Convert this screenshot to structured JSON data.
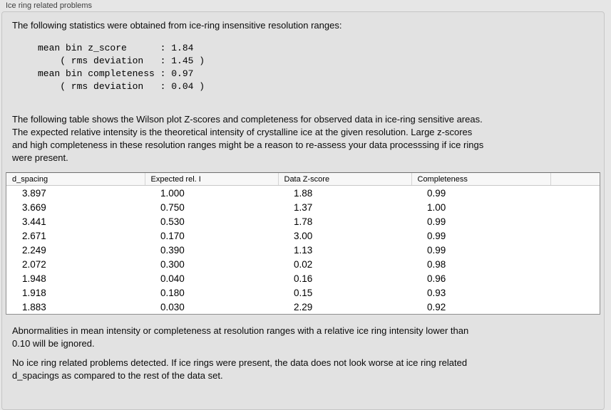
{
  "panel": {
    "title": "Ice ring related problems"
  },
  "intro": "The following statistics were obtained from ice-ring insensitive resolution ranges:",
  "stats_text": "mean bin z_score      : 1.84\n    ( rms deviation   : 1.45 )\nmean bin completeness : 0.97\n    ( rms deviation   : 0.04 )",
  "stats": {
    "mean_bin_z_score": "1.84",
    "z_score_rms_deviation": "1.45",
    "mean_bin_completeness": "0.97",
    "completeness_rms_deviation": "0.04"
  },
  "description": "The following table shows the Wilson plot Z-scores and completeness for observed data in ice-ring sensitive areas.\nThe expected relative intensity is the theoretical intensity of crystalline ice at the given resolution. Large z-scores\nand high completeness in these resolution ranges might be a reason to re-assess your data processsing if ice rings\nwere present.",
  "table": {
    "headers": [
      "d_spacing",
      "Expected rel. I",
      "Data Z-score",
      "Completeness",
      ""
    ],
    "rows": [
      [
        "3.897",
        "1.000",
        "1.88",
        "0.99"
      ],
      [
        "3.669",
        "0.750",
        "1.37",
        "1.00"
      ],
      [
        "3.441",
        "0.530",
        "1.78",
        "0.99"
      ],
      [
        "2.671",
        "0.170",
        "3.00",
        "0.99"
      ],
      [
        "2.249",
        "0.390",
        "1.13",
        "0.99"
      ],
      [
        "2.072",
        "0.300",
        "0.02",
        "0.98"
      ],
      [
        "1.948",
        "0.040",
        "0.16",
        "0.96"
      ],
      [
        "1.918",
        "0.180",
        "0.15",
        "0.93"
      ],
      [
        "1.883",
        "0.030",
        "2.29",
        "0.92"
      ]
    ]
  },
  "note_ignore": "Abnormalities in mean intensity or completeness at resolution ranges with a relative ice ring intensity lower than\n0.10 will be ignored.",
  "conclusion": "No ice ring related problems detected. If ice rings were present, the data does not look worse at ice ring related\nd_spacings as compared to the rest of the data set."
}
